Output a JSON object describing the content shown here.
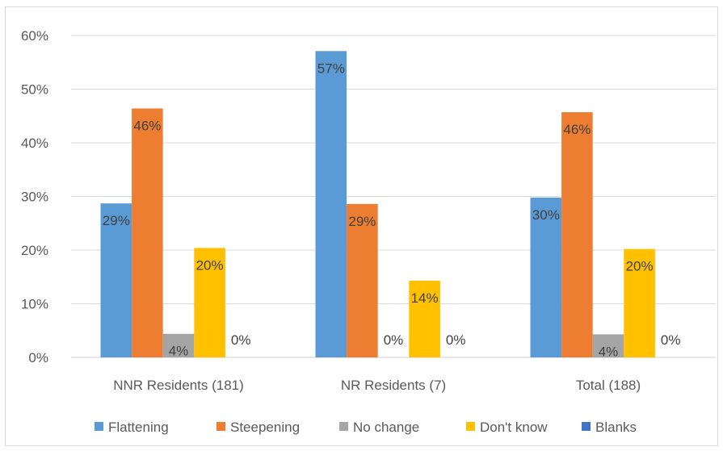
{
  "chart_data": {
    "type": "bar",
    "title": "",
    "xlabel": "",
    "ylabel": "",
    "ylim": [
      0,
      0.6
    ],
    "y_ticks": [
      "0%",
      "10%",
      "20%",
      "30%",
      "40%",
      "50%",
      "60%"
    ],
    "grid": true,
    "legend_position": "bottom",
    "categories": [
      "NNR Residents (181)",
      "NR Residents (7)",
      "Total (188)"
    ],
    "series": [
      {
        "name": "Flattening",
        "color": "#5b9bd5",
        "values": [
          0.287,
          0.571,
          0.298
        ],
        "labels": [
          "29%",
          "57%",
          "30%"
        ]
      },
      {
        "name": "Steepening",
        "color": "#ed7d31",
        "values": [
          0.464,
          0.286,
          0.457
        ],
        "labels": [
          "46%",
          "29%",
          "46%"
        ]
      },
      {
        "name": "No change",
        "color": "#a5a5a5",
        "values": [
          0.044,
          0.0,
          0.043
        ],
        "labels": [
          "4%",
          "0%",
          "4%"
        ]
      },
      {
        "name": "Don't know",
        "color": "#ffc000",
        "values": [
          0.204,
          0.143,
          0.202
        ],
        "labels": [
          "20%",
          "14%",
          "20%"
        ]
      },
      {
        "name": "Blanks",
        "color": "#4472c4",
        "values": [
          0.0,
          0.0,
          0.0
        ],
        "labels": [
          "0%",
          "0%",
          "0%"
        ]
      }
    ]
  }
}
